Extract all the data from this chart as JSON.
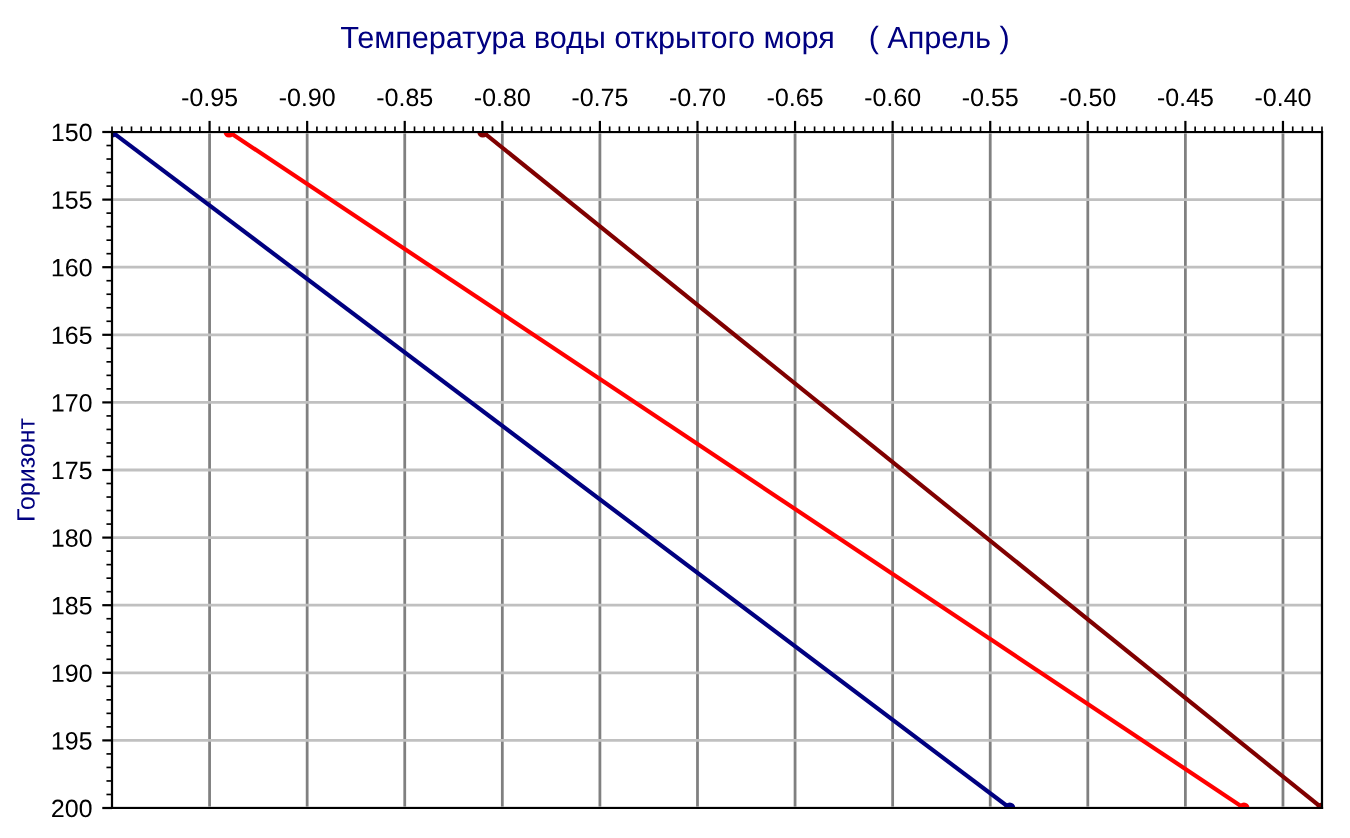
{
  "chart_data": {
    "type": "line",
    "title": "Температура воды открытого моря    ( Апрель )",
    "ylabel": "Горизонт",
    "series": [
      {
        "color": "#000080",
        "x": [
          -1.0,
          -0.54
        ],
        "values": [
          150,
          200
        ]
      },
      {
        "color": "#ff0000",
        "x": [
          -0.94,
          -0.42
        ],
        "values": [
          150,
          200
        ]
      },
      {
        "color": "#800000",
        "x": [
          -0.81,
          -0.38
        ],
        "values": [
          150,
          200
        ]
      }
    ],
    "xlim": [
      -1.0,
      -0.38
    ],
    "xticks": [
      -0.95,
      {
        "value": -0.9,
        "label": "-0.90"
      },
      -0.85,
      {
        "value": -0.8,
        "label": "-0.80"
      },
      -0.75,
      {
        "value": -0.7,
        "label": "-0.70"
      },
      -0.65,
      {
        "value": -0.6,
        "label": "-0.60"
      },
      -0.55,
      {
        "value": -0.5,
        "label": "-0.50"
      },
      -0.45,
      {
        "value": -0.4,
        "label": "-0.40"
      }
    ],
    "ylim": [
      200,
      150
    ],
    "yticks": [
      150,
      155,
      160,
      165,
      170,
      175,
      180,
      185,
      190,
      195,
      200
    ],
    "grid": true,
    "marker": "circle",
    "line_style": "solid"
  }
}
